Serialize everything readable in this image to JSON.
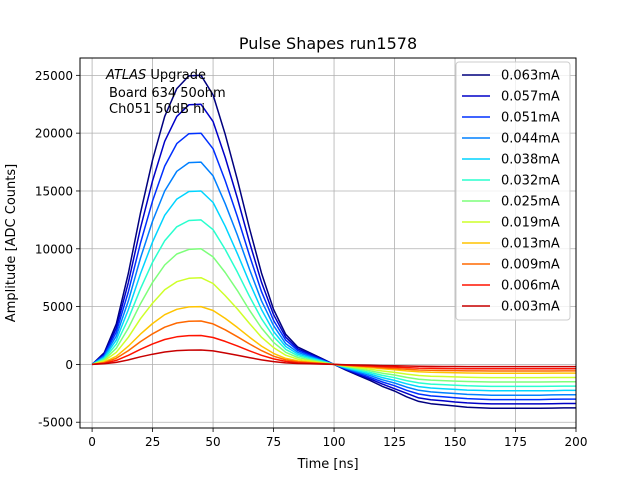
{
  "chart_data": {
    "type": "line",
    "title": "Pulse Shapes run1578",
    "xlabel": "Time [ns]",
    "ylabel": "Amplitude [ADC Counts]",
    "xlim": [
      -5,
      200
    ],
    "ylim": [
      -5500,
      26500
    ],
    "xticks": [
      0,
      25,
      50,
      75,
      100,
      125,
      150,
      175,
      200
    ],
    "yticks": [
      -5000,
      0,
      5000,
      10000,
      15000,
      20000,
      25000
    ],
    "grid": true,
    "legend_position": "top-right",
    "annotation": {
      "italic": "ATLAS",
      "rest": " Upgrade",
      "line2": "Board 634 50ohm",
      "line3": "Ch051 50dB hi"
    },
    "x": [
      0,
      5,
      10,
      15,
      20,
      25,
      30,
      35,
      40,
      45,
      50,
      55,
      60,
      65,
      70,
      75,
      80,
      85,
      90,
      95,
      100,
      105,
      110,
      115,
      120,
      125,
      130,
      135,
      140,
      145,
      150,
      155,
      160,
      165,
      170,
      175,
      180,
      185,
      190,
      195,
      200
    ],
    "series": [
      {
        "name": "0.063mA",
        "color": "#00007f",
        "values": [
          0,
          1000,
          3500,
          7900,
          13100,
          17700,
          21450,
          23850,
          24950,
          25000,
          23300,
          19900,
          16000,
          11800,
          7900,
          4750,
          2600,
          1500,
          1000,
          500,
          0,
          -500,
          -950,
          -1400,
          -1900,
          -2300,
          -2800,
          -3200,
          -3400,
          -3500,
          -3600,
          -3700,
          -3750,
          -3800,
          -3800,
          -3800,
          -3800,
          -3800,
          -3780,
          -3760,
          -3760
        ]
      },
      {
        "name": "0.057mA",
        "color": "#0000c8",
        "values": [
          0,
          900,
          3150,
          7100,
          11800,
          15900,
          19300,
          21450,
          22450,
          22500,
          21000,
          17900,
          14400,
          10600,
          7100,
          4300,
          2350,
          1350,
          900,
          450,
          0,
          -450,
          -860,
          -1260,
          -1700,
          -2100,
          -2500,
          -2900,
          -3050,
          -3150,
          -3250,
          -3330,
          -3380,
          -3420,
          -3420,
          -3420,
          -3420,
          -3420,
          -3400,
          -3380,
          -3380
        ]
      },
      {
        "name": "0.051mA",
        "color": "#0030ff",
        "values": [
          0,
          800,
          2800,
          6300,
          10500,
          14150,
          17150,
          19100,
          19950,
          20000,
          18650,
          15900,
          12800,
          9450,
          6300,
          3800,
          2100,
          1200,
          800,
          400,
          0,
          -400,
          -760,
          -1120,
          -1520,
          -1840,
          -2240,
          -2560,
          -2720,
          -2800,
          -2880,
          -2960,
          -3000,
          -3040,
          -3040,
          -3040,
          -3040,
          -3040,
          -3020,
          -3000,
          -3000
        ]
      },
      {
        "name": "0.044mA",
        "color": "#0080ff",
        "values": [
          0,
          700,
          2450,
          5500,
          9200,
          12400,
          15000,
          16700,
          17450,
          17500,
          16300,
          13900,
          11200,
          8250,
          5500,
          3350,
          1800,
          1050,
          700,
          350,
          0,
          -350,
          -670,
          -980,
          -1330,
          -1610,
          -1960,
          -2240,
          -2380,
          -2450,
          -2520,
          -2590,
          -2630,
          -2660,
          -2660,
          -2660,
          -2660,
          -2660,
          -2640,
          -2630,
          -2630
        ]
      },
      {
        "name": "0.038mA",
        "color": "#00d4ff",
        "values": [
          0,
          600,
          2100,
          4750,
          7850,
          10600,
          12900,
          14300,
          14950,
          15000,
          14000,
          11950,
          9600,
          7100,
          4750,
          2850,
          1550,
          900,
          600,
          300,
          0,
          -300,
          -570,
          -840,
          -1140,
          -1380,
          -1680,
          -1920,
          -2040,
          -2100,
          -2160,
          -2220,
          -2250,
          -2280,
          -2280,
          -2280,
          -2280,
          -2280,
          -2270,
          -2250,
          -2250
        ]
      },
      {
        "name": "0.032mA",
        "color": "#29ffce",
        "values": [
          0,
          500,
          1750,
          3950,
          6550,
          8850,
          10700,
          11900,
          12450,
          12500,
          11650,
          9950,
          8000,
          5900,
          3950,
          2400,
          1300,
          750,
          500,
          250,
          0,
          -250,
          -480,
          -700,
          -950,
          -1150,
          -1400,
          -1600,
          -1700,
          -1750,
          -1800,
          -1850,
          -1880,
          -1900,
          -1900,
          -1900,
          -1900,
          -1900,
          -1890,
          -1880,
          -1880
        ]
      },
      {
        "name": "0.025mA",
        "color": "#7dff7a",
        "values": [
          0,
          400,
          1400,
          3150,
          5250,
          7100,
          8600,
          9550,
          9950,
          10000,
          9300,
          7950,
          6400,
          4700,
          3150,
          1900,
          1050,
          600,
          400,
          200,
          0,
          -200,
          -380,
          -560,
          -760,
          -920,
          -1120,
          -1280,
          -1360,
          -1400,
          -1440,
          -1480,
          -1500,
          -1520,
          -1520,
          -1520,
          -1520,
          -1520,
          -1510,
          -1500,
          -1500
        ]
      },
      {
        "name": "0.019mA",
        "color": "#ceff29",
        "values": [
          0,
          300,
          1050,
          2350,
          3950,
          5300,
          6450,
          7150,
          7450,
          7500,
          7000,
          5950,
          4800,
          3550,
          2350,
          1450,
          800,
          450,
          300,
          150,
          0,
          -150,
          -290,
          -420,
          -570,
          -690,
          -840,
          -960,
          -1020,
          -1050,
          -1080,
          -1110,
          -1130,
          -1140,
          -1140,
          -1140,
          -1140,
          -1140,
          -1130,
          -1130,
          -1130
        ]
      },
      {
        "name": "0.013mA",
        "color": "#ffc400",
        "values": [
          0,
          200,
          700,
          1580,
          2620,
          3540,
          4300,
          4770,
          4970,
          5000,
          4660,
          3980,
          3200,
          2360,
          1580,
          950,
          520,
          300,
          200,
          100,
          0,
          -100,
          -190,
          -280,
          -380,
          -460,
          -560,
          -640,
          -680,
          -700,
          -720,
          -740,
          -750,
          -760,
          -760,
          -760,
          -760,
          -760,
          -750,
          -750,
          -750
        ]
      },
      {
        "name": "0.009mA",
        "color": "#ff6800",
        "values": [
          0,
          150,
          530,
          1190,
          1970,
          2650,
          3220,
          3580,
          3730,
          3750,
          3500,
          2990,
          2400,
          1770,
          1190,
          710,
          390,
          230,
          150,
          80,
          0,
          -80,
          -140,
          -210,
          -290,
          -350,
          -420,
          -480,
          -510,
          -530,
          -540,
          -560,
          -560,
          -570,
          -570,
          -570,
          -570,
          -570,
          -570,
          -560,
          -560
        ]
      },
      {
        "name": "0.006mA",
        "color": "#ff1300",
        "values": [
          0,
          100,
          350,
          790,
          1310,
          1770,
          2150,
          2390,
          2490,
          2500,
          2330,
          1990,
          1600,
          1180,
          790,
          480,
          260,
          150,
          100,
          50,
          0,
          -50,
          -100,
          -140,
          -190,
          -230,
          -280,
          -320,
          -340,
          -350,
          -360,
          -370,
          -380,
          -380,
          -380,
          -380,
          -380,
          -380,
          -380,
          -380,
          -380
        ]
      },
      {
        "name": "0.003mA",
        "color": "#c80000",
        "values": [
          0,
          50,
          170,
          390,
          660,
          880,
          1070,
          1190,
          1240,
          1250,
          1170,
          990,
          800,
          590,
          390,
          240,
          130,
          80,
          50,
          30,
          0,
          -30,
          -50,
          -70,
          -100,
          -120,
          -140,
          -160,
          -170,
          -180,
          -180,
          -190,
          -190,
          -190,
          -190,
          -190,
          -190,
          -190,
          -190,
          -190,
          -190
        ]
      }
    ]
  }
}
